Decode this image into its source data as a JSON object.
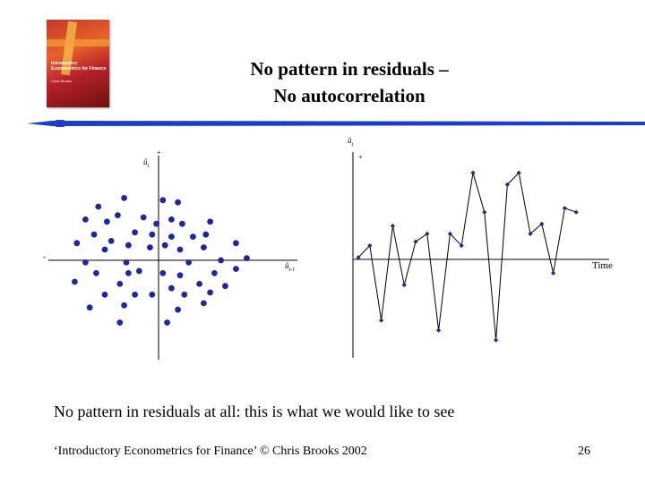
{
  "slide": {
    "title_line1": "No pattern in residuals –",
    "title_line2": "No autocorrelation",
    "caption": "No pattern in residuals at all: this is what we would like to see",
    "footer": "‘Introductory Econometrics for Finance’ © Chris Brooks 2002",
    "page_number": "26"
  },
  "book_cover": {
    "title": "Introductory Econometrics for Finance",
    "author": "Chris Brooks"
  },
  "colors": {
    "accent": "#1a3ec8",
    "points": "#1a2a9a",
    "line": "#000000"
  },
  "chart_data": [
    {
      "type": "scatter",
      "xlabel": "û_{t-1}",
      "ylabel": "û_t",
      "y_axis_plus": "+",
      "x_axis_minus": "-",
      "xlim": [
        -5,
        5
      ],
      "ylim": [
        -5,
        5
      ],
      "points": [
        [
          -1.6,
          2.9
        ],
        [
          0.2,
          2.8
        ],
        [
          0.9,
          2.7
        ],
        [
          -2.8,
          2.5
        ],
        [
          -1.9,
          2.1
        ],
        [
          -0.7,
          2.0
        ],
        [
          -3.4,
          1.9
        ],
        [
          -2.4,
          1.8
        ],
        [
          -0.1,
          1.7
        ],
        [
          1.1,
          1.7
        ],
        [
          2.4,
          1.8
        ],
        [
          0.6,
          1.9
        ],
        [
          -3.0,
          1.2
        ],
        [
          -1.1,
          1.3
        ],
        [
          -0.3,
          1.2
        ],
        [
          0.6,
          1.1
        ],
        [
          1.6,
          1.1
        ],
        [
          2.2,
          1.2
        ],
        [
          -3.8,
          0.8
        ],
        [
          -2.2,
          0.9
        ],
        [
          -1.4,
          0.7
        ],
        [
          -0.4,
          0.6
        ],
        [
          0.3,
          0.7
        ],
        [
          1.0,
          0.5
        ],
        [
          3.6,
          0.8
        ],
        [
          -2.5,
          0.5
        ],
        [
          2.1,
          0.6
        ],
        [
          -3.4,
          -0.1
        ],
        [
          -1.5,
          -0.1
        ],
        [
          1.4,
          -0.1
        ],
        [
          2.9,
          0.0
        ],
        [
          4.1,
          0.1
        ],
        [
          -2.9,
          -0.6
        ],
        [
          -1.4,
          -0.6
        ],
        [
          -0.9,
          -0.5
        ],
        [
          0.2,
          -0.6
        ],
        [
          1.0,
          -0.7
        ],
        [
          2.6,
          -0.6
        ],
        [
          3.6,
          -0.4
        ],
        [
          -3.9,
          -1.0
        ],
        [
          -1.8,
          -1.1
        ],
        [
          0.6,
          -1.3
        ],
        [
          1.9,
          -1.1
        ],
        [
          3.1,
          -1.2
        ],
        [
          -2.5,
          -1.6
        ],
        [
          -1.1,
          -1.6
        ],
        [
          -0.3,
          -1.6
        ],
        [
          1.2,
          -1.6
        ],
        [
          2.4,
          -1.5
        ],
        [
          -3.2,
          -2.2
        ],
        [
          -1.6,
          -2.1
        ],
        [
          0.9,
          -2.3
        ],
        [
          2.1,
          -2.0
        ],
        [
          -1.8,
          -2.9
        ],
        [
          0.4,
          -2.9
        ]
      ]
    },
    {
      "type": "line",
      "ylabel": "û_t",
      "xlabel": "Time",
      "y_axis_plus": "+",
      "ylim": [
        -5,
        5
      ],
      "x": [
        1,
        2,
        3,
        4,
        5,
        6,
        7,
        8,
        9,
        10,
        11,
        12,
        13,
        14,
        15,
        16,
        17,
        18,
        19,
        20
      ],
      "values": [
        0.1,
        0.7,
        -3.1,
        1.7,
        -1.3,
        0.9,
        1.3,
        -3.6,
        1.3,
        0.7,
        4.4,
        2.4,
        -4.1,
        3.8,
        4.4,
        1.3,
        1.8,
        -0.7,
        2.6,
        2.4
      ]
    }
  ]
}
